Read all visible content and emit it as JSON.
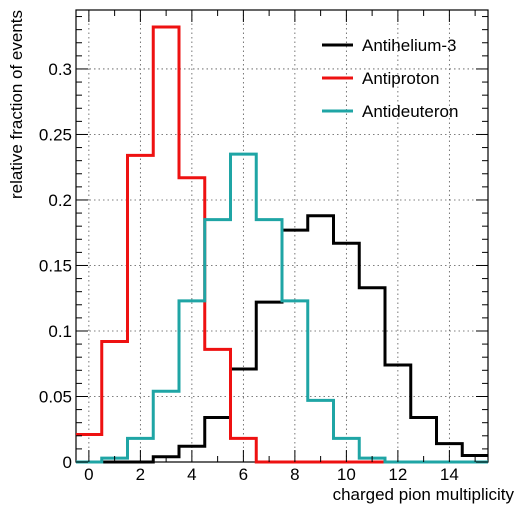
{
  "chart_data": {
    "type": "histogram",
    "xlabel": "charged pion multiplicity",
    "ylabel": "relative fraction of events",
    "xlim": [
      -0.5,
      15.5
    ],
    "ylim": [
      0,
      0.345
    ],
    "xticks": [
      0,
      2,
      4,
      6,
      8,
      10,
      12,
      14
    ],
    "yticks": [
      0,
      0.05,
      0.1,
      0.15,
      0.2,
      0.25,
      0.3
    ],
    "ytick_labels": [
      "0",
      "0.05",
      "0.1",
      "0.15",
      "0.2",
      "0.25",
      "0.3"
    ],
    "grid": true,
    "legend_position": "top-right",
    "bin_edges": [
      -0.5,
      0.5,
      1.5,
      2.5,
      3.5,
      4.5,
      5.5,
      6.5,
      7.5,
      8.5,
      9.5,
      10.5,
      11.5,
      12.5,
      13.5,
      14.5,
      15.5
    ],
    "series": [
      {
        "name": "Antihelium-3",
        "color": "#000000",
        "values": [
          0.0,
          0.0,
          0.0,
          0.004,
          0.012,
          0.034,
          0.071,
          0.122,
          0.177,
          0.188,
          0.167,
          0.133,
          0.074,
          0.034,
          0.014,
          0.005
        ]
      },
      {
        "name": "Antiproton",
        "color": "#ee1111",
        "values": [
          0.021,
          0.092,
          0.234,
          0.332,
          0.217,
          0.086,
          0.018,
          0.0,
          0.0,
          0.0,
          0.0,
          0.0,
          0.0,
          0.0,
          0.0,
          0.0
        ]
      },
      {
        "name": "Antideuteron",
        "color": "#1fa5a5",
        "values": [
          0.0,
          0.003,
          0.018,
          0.054,
          0.123,
          0.185,
          0.235,
          0.185,
          0.123,
          0.047,
          0.018,
          0.003,
          0.0,
          0.0,
          0.0,
          0.0
        ]
      }
    ]
  }
}
